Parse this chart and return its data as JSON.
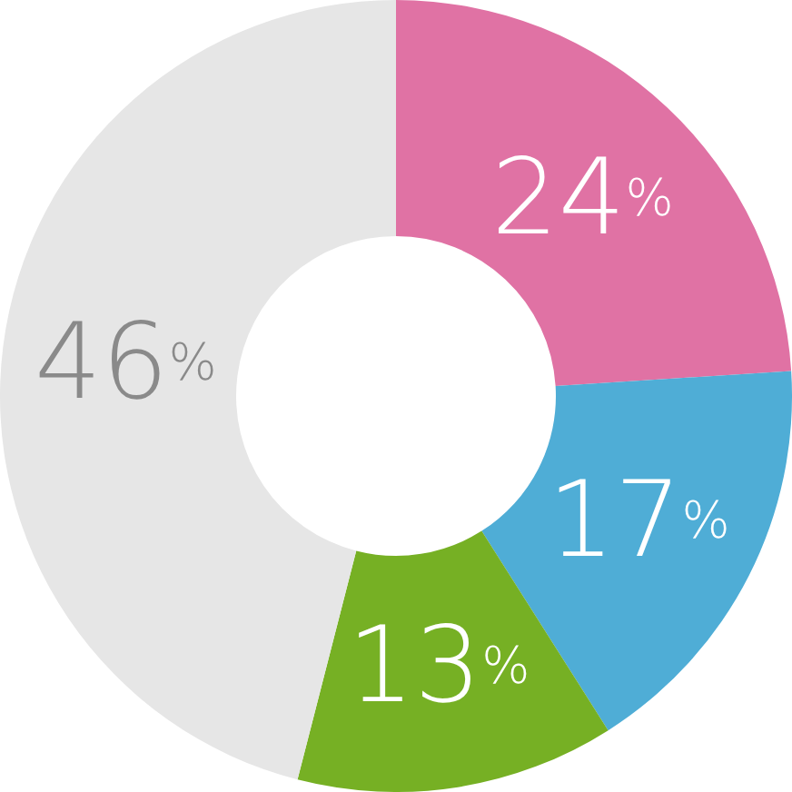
{
  "chart_data": {
    "type": "donut",
    "categories": [
      null,
      null,
      null,
      null
    ],
    "values": [
      24,
      17,
      13,
      46
    ],
    "colors": [
      "#e072a4",
      "#4fadd6",
      "#76b024",
      "#e6e6e6"
    ],
    "value_labels": [
      "24%",
      "17%",
      "13%",
      "46%"
    ],
    "legend": false
  }
}
